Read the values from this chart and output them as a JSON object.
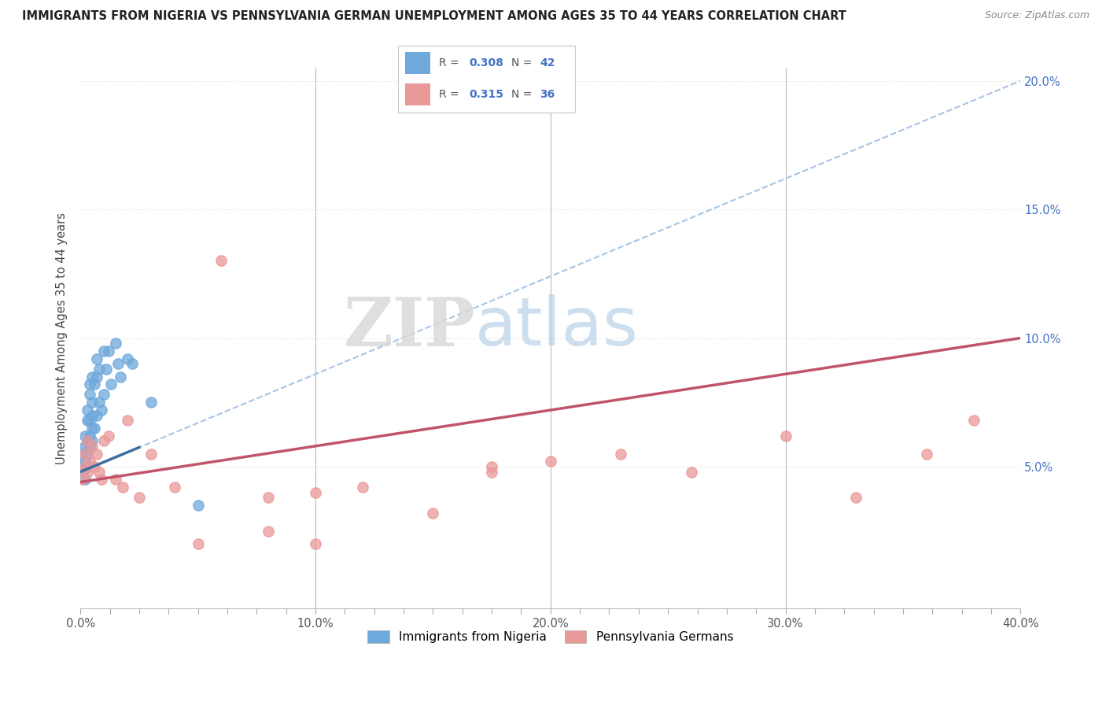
{
  "title": "IMMIGRANTS FROM NIGERIA VS PENNSYLVANIA GERMAN UNEMPLOYMENT AMONG AGES 35 TO 44 YEARS CORRELATION CHART",
  "source": "Source: ZipAtlas.com",
  "ylabel": "Unemployment Among Ages 35 to 44 years",
  "xlim": [
    0.0,
    0.4
  ],
  "ylim": [
    -0.005,
    0.205
  ],
  "xtick_labels": [
    "0.0%",
    "",
    "",
    "",
    "",
    "",
    "",
    "",
    "10.0%",
    "",
    "",
    "",
    "",
    "",
    "",
    "",
    "20.0%",
    "",
    "",
    "",
    "",
    "",
    "",
    "",
    "30.0%",
    "",
    "",
    "",
    "",
    "",
    "",
    "",
    "40.0%"
  ],
  "xtick_vals": [
    0.0,
    0.0125,
    0.025,
    0.0375,
    0.05,
    0.0625,
    0.075,
    0.0875,
    0.1,
    0.1125,
    0.125,
    0.1375,
    0.15,
    0.1625,
    0.175,
    0.1875,
    0.2,
    0.2125,
    0.225,
    0.2375,
    0.25,
    0.2625,
    0.275,
    0.2875,
    0.3,
    0.3125,
    0.325,
    0.3375,
    0.35,
    0.3625,
    0.375,
    0.3875,
    0.4
  ],
  "ytick_labels": [
    "5.0%",
    "10.0%",
    "15.0%",
    "20.0%"
  ],
  "ytick_vals": [
    0.05,
    0.1,
    0.15,
    0.2
  ],
  "nigeria_R": "0.308",
  "nigeria_N": "42",
  "pagerman_R": "0.315",
  "pagerman_N": "36",
  "nigeria_color": "#6fa8dc",
  "pagerman_color": "#ea9999",
  "nigeria_line_color": "#3d6fa0",
  "pagerman_line_color": "#c0546a",
  "nigeria_dash_color": "#aac4e0",
  "nigeria_scatter_x": [
    0.001,
    0.001,
    0.001,
    0.002,
    0.002,
    0.002,
    0.002,
    0.003,
    0.003,
    0.003,
    0.003,
    0.003,
    0.004,
    0.004,
    0.004,
    0.004,
    0.004,
    0.005,
    0.005,
    0.005,
    0.005,
    0.005,
    0.006,
    0.006,
    0.007,
    0.007,
    0.007,
    0.008,
    0.008,
    0.009,
    0.01,
    0.01,
    0.011,
    0.012,
    0.013,
    0.015,
    0.016,
    0.017,
    0.02,
    0.022,
    0.03,
    0.05
  ],
  "nigeria_scatter_y": [
    0.048,
    0.05,
    0.055,
    0.045,
    0.052,
    0.058,
    0.062,
    0.05,
    0.055,
    0.06,
    0.068,
    0.072,
    0.058,
    0.062,
    0.068,
    0.078,
    0.082,
    0.06,
    0.065,
    0.07,
    0.075,
    0.085,
    0.065,
    0.082,
    0.07,
    0.085,
    0.092,
    0.075,
    0.088,
    0.072,
    0.078,
    0.095,
    0.088,
    0.095,
    0.082,
    0.098,
    0.09,
    0.085,
    0.092,
    0.09,
    0.075,
    0.035
  ],
  "pagerman_scatter_x": [
    0.001,
    0.002,
    0.002,
    0.003,
    0.003,
    0.004,
    0.005,
    0.006,
    0.007,
    0.008,
    0.009,
    0.01,
    0.012,
    0.015,
    0.018,
    0.02,
    0.025,
    0.03,
    0.04,
    0.06,
    0.08,
    0.1,
    0.12,
    0.15,
    0.175,
    0.2,
    0.23,
    0.26,
    0.3,
    0.33,
    0.36,
    0.38,
    0.175,
    0.1,
    0.05,
    0.08
  ],
  "pagerman_scatter_y": [
    0.045,
    0.05,
    0.055,
    0.048,
    0.06,
    0.052,
    0.058,
    0.05,
    0.055,
    0.048,
    0.045,
    0.06,
    0.062,
    0.045,
    0.042,
    0.068,
    0.038,
    0.055,
    0.042,
    0.13,
    0.038,
    0.04,
    0.042,
    0.032,
    0.05,
    0.052,
    0.055,
    0.048,
    0.062,
    0.038,
    0.055,
    0.068,
    0.048,
    0.02,
    0.02,
    0.025
  ],
  "legend_loc": "upper center",
  "watermark_zip": "ZIP",
  "watermark_atlas": "atlas",
  "background_color": "#ffffff",
  "grid_color": "#e0e0e0",
  "marker_size": 90,
  "legend_box_color": "#cccccc"
}
